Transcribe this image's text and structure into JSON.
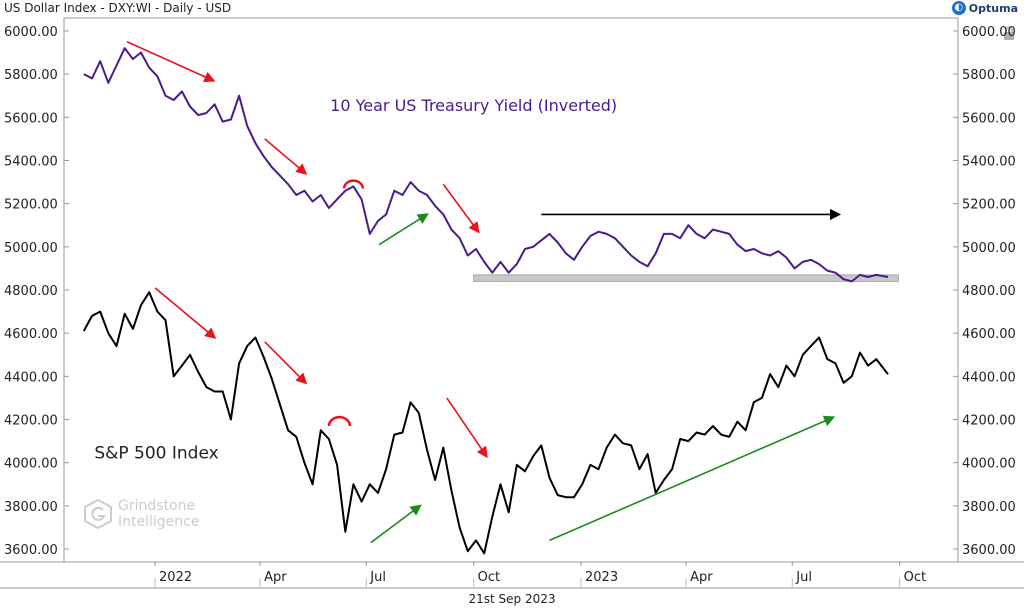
{
  "header": {
    "title": "US Dollar Index - DXY:WI - Daily - USD"
  },
  "brand": {
    "name": "Optuma",
    "logo_icon": "optuma-logo-icon"
  },
  "footer": {
    "date": "21st Sep 2023"
  },
  "watermark": {
    "line1": "Grindstone",
    "line2": "Intelligence"
  },
  "chart_data": {
    "type": "line",
    "ylim": [
      3540,
      6060
    ],
    "y_ticks": [
      "6000.00",
      "5800.00",
      "5600.00",
      "5400.00",
      "5200.00",
      "5000.00",
      "4800.00",
      "4600.00",
      "4400.00",
      "4200.00",
      "4000.00",
      "3800.00",
      "3600.00"
    ],
    "x_ticks": [
      "2022",
      "Apr",
      "Jul",
      "Oct",
      "2023",
      "Apr",
      "Jul",
      "Oct"
    ],
    "x_tick_dates": [
      "2022-01-01",
      "2022-04-01",
      "2022-07-01",
      "2022-10-01",
      "2023-01-01",
      "2023-04-01",
      "2023-07-01",
      "2023-10-01"
    ],
    "xlim": [
      "2021-10-15",
      "2023-11-20"
    ],
    "series": [
      {
        "name": "10 Year US Treasury Yield (Inverted)",
        "color": "#4b1a8c",
        "points": [
          [
            "2021-11-01",
            5800
          ],
          [
            "2021-11-08",
            5780
          ],
          [
            "2021-11-15",
            5860
          ],
          [
            "2021-11-22",
            5760
          ],
          [
            "2021-11-29",
            5840
          ],
          [
            "2021-12-06",
            5920
          ],
          [
            "2021-12-13",
            5870
          ],
          [
            "2021-12-20",
            5900
          ],
          [
            "2021-12-27",
            5830
          ],
          [
            "2022-01-03",
            5790
          ],
          [
            "2022-01-10",
            5700
          ],
          [
            "2022-01-17",
            5680
          ],
          [
            "2022-01-24",
            5720
          ],
          [
            "2022-01-31",
            5650
          ],
          [
            "2022-02-07",
            5610
          ],
          [
            "2022-02-14",
            5620
          ],
          [
            "2022-02-21",
            5660
          ],
          [
            "2022-02-28",
            5580
          ],
          [
            "2022-03-07",
            5590
          ],
          [
            "2022-03-14",
            5700
          ],
          [
            "2022-03-21",
            5560
          ],
          [
            "2022-03-28",
            5480
          ],
          [
            "2022-04-04",
            5420
          ],
          [
            "2022-04-11",
            5370
          ],
          [
            "2022-04-18",
            5330
          ],
          [
            "2022-04-25",
            5290
          ],
          [
            "2022-05-02",
            5240
          ],
          [
            "2022-05-09",
            5260
          ],
          [
            "2022-05-16",
            5210
          ],
          [
            "2022-05-23",
            5240
          ],
          [
            "2022-05-30",
            5180
          ],
          [
            "2022-06-06",
            5220
          ],
          [
            "2022-06-13",
            5260
          ],
          [
            "2022-06-20",
            5280
          ],
          [
            "2022-06-27",
            5220
          ],
          [
            "2022-07-04",
            5060
          ],
          [
            "2022-07-11",
            5120
          ],
          [
            "2022-07-18",
            5150
          ],
          [
            "2022-07-25",
            5260
          ],
          [
            "2022-08-01",
            5240
          ],
          [
            "2022-08-08",
            5300
          ],
          [
            "2022-08-15",
            5260
          ],
          [
            "2022-08-22",
            5240
          ],
          [
            "2022-08-29",
            5190
          ],
          [
            "2022-09-05",
            5150
          ],
          [
            "2022-09-12",
            5080
          ],
          [
            "2022-09-19",
            5040
          ],
          [
            "2022-09-26",
            4960
          ],
          [
            "2022-10-03",
            4990
          ],
          [
            "2022-10-10",
            4930
          ],
          [
            "2022-10-17",
            4880
          ],
          [
            "2022-10-24",
            4930
          ],
          [
            "2022-10-31",
            4880
          ],
          [
            "2022-11-07",
            4920
          ],
          [
            "2022-11-14",
            4990
          ],
          [
            "2022-11-21",
            5000
          ],
          [
            "2022-11-28",
            5030
          ],
          [
            "2022-12-05",
            5060
          ],
          [
            "2022-12-12",
            5020
          ],
          [
            "2022-12-19",
            4970
          ],
          [
            "2022-12-26",
            4940
          ],
          [
            "2023-01-02",
            5000
          ],
          [
            "2023-01-09",
            5050
          ],
          [
            "2023-01-16",
            5070
          ],
          [
            "2023-01-23",
            5060
          ],
          [
            "2023-01-30",
            5040
          ],
          [
            "2023-02-06",
            5000
          ],
          [
            "2023-02-13",
            4960
          ],
          [
            "2023-02-20",
            4930
          ],
          [
            "2023-02-27",
            4910
          ],
          [
            "2023-03-06",
            4970
          ],
          [
            "2023-03-13",
            5060
          ],
          [
            "2023-03-20",
            5060
          ],
          [
            "2023-03-27",
            5040
          ],
          [
            "2023-04-03",
            5100
          ],
          [
            "2023-04-10",
            5060
          ],
          [
            "2023-04-17",
            5040
          ],
          [
            "2023-04-24",
            5080
          ],
          [
            "2023-05-01",
            5070
          ],
          [
            "2023-05-08",
            5060
          ],
          [
            "2023-05-15",
            5010
          ],
          [
            "2023-05-22",
            4980
          ],
          [
            "2023-05-29",
            4990
          ],
          [
            "2023-06-05",
            4970
          ],
          [
            "2023-06-12",
            4960
          ],
          [
            "2023-06-19",
            4980
          ],
          [
            "2023-06-26",
            4950
          ],
          [
            "2023-07-03",
            4900
          ],
          [
            "2023-07-10",
            4930
          ],
          [
            "2023-07-17",
            4940
          ],
          [
            "2023-07-24",
            4920
          ],
          [
            "2023-07-31",
            4890
          ],
          [
            "2023-08-07",
            4880
          ],
          [
            "2023-08-14",
            4850
          ],
          [
            "2023-08-21",
            4840
          ],
          [
            "2023-08-28",
            4870
          ],
          [
            "2023-09-04",
            4860
          ],
          [
            "2023-09-11",
            4870
          ],
          [
            "2023-09-21",
            4860
          ]
        ]
      },
      {
        "name": "S&P 500 Index",
        "color": "#000000",
        "points": [
          [
            "2021-11-01",
            4610
          ],
          [
            "2021-11-08",
            4680
          ],
          [
            "2021-11-15",
            4700
          ],
          [
            "2021-11-22",
            4600
          ],
          [
            "2021-11-29",
            4540
          ],
          [
            "2021-12-06",
            4690
          ],
          [
            "2021-12-13",
            4620
          ],
          [
            "2021-12-20",
            4730
          ],
          [
            "2021-12-27",
            4790
          ],
          [
            "2022-01-03",
            4700
          ],
          [
            "2022-01-10",
            4660
          ],
          [
            "2022-01-17",
            4400
          ],
          [
            "2022-01-24",
            4450
          ],
          [
            "2022-01-31",
            4500
          ],
          [
            "2022-02-07",
            4420
          ],
          [
            "2022-02-14",
            4350
          ],
          [
            "2022-02-21",
            4330
          ],
          [
            "2022-02-28",
            4330
          ],
          [
            "2022-03-07",
            4200
          ],
          [
            "2022-03-14",
            4460
          ],
          [
            "2022-03-21",
            4540
          ],
          [
            "2022-03-28",
            4580
          ],
          [
            "2022-04-04",
            4490
          ],
          [
            "2022-04-11",
            4390
          ],
          [
            "2022-04-18",
            4270
          ],
          [
            "2022-04-25",
            4150
          ],
          [
            "2022-05-02",
            4120
          ],
          [
            "2022-05-09",
            4000
          ],
          [
            "2022-05-16",
            3900
          ],
          [
            "2022-05-23",
            4150
          ],
          [
            "2022-05-30",
            4110
          ],
          [
            "2022-06-06",
            3990
          ],
          [
            "2022-06-13",
            3680
          ],
          [
            "2022-06-20",
            3900
          ],
          [
            "2022-06-27",
            3820
          ],
          [
            "2022-07-04",
            3900
          ],
          [
            "2022-07-11",
            3860
          ],
          [
            "2022-07-18",
            3970
          ],
          [
            "2022-07-25",
            4130
          ],
          [
            "2022-08-01",
            4140
          ],
          [
            "2022-08-08",
            4280
          ],
          [
            "2022-08-15",
            4230
          ],
          [
            "2022-08-22",
            4060
          ],
          [
            "2022-08-29",
            3920
          ],
          [
            "2022-09-05",
            4070
          ],
          [
            "2022-09-12",
            3870
          ],
          [
            "2022-09-19",
            3700
          ],
          [
            "2022-09-26",
            3590
          ],
          [
            "2022-10-03",
            3640
          ],
          [
            "2022-10-10",
            3580
          ],
          [
            "2022-10-17",
            3750
          ],
          [
            "2022-10-24",
            3900
          ],
          [
            "2022-10-31",
            3770
          ],
          [
            "2022-11-07",
            3990
          ],
          [
            "2022-11-14",
            3960
          ],
          [
            "2022-11-21",
            4030
          ],
          [
            "2022-11-28",
            4080
          ],
          [
            "2022-12-05",
            3930
          ],
          [
            "2022-12-12",
            3850
          ],
          [
            "2022-12-19",
            3840
          ],
          [
            "2022-12-26",
            3840
          ],
          [
            "2023-01-02",
            3900
          ],
          [
            "2023-01-09",
            3990
          ],
          [
            "2023-01-16",
            3970
          ],
          [
            "2023-01-23",
            4070
          ],
          [
            "2023-01-30",
            4130
          ],
          [
            "2023-02-06",
            4090
          ],
          [
            "2023-02-13",
            4080
          ],
          [
            "2023-02-20",
            3970
          ],
          [
            "2023-02-27",
            4040
          ],
          [
            "2023-03-06",
            3860
          ],
          [
            "2023-03-13",
            3920
          ],
          [
            "2023-03-20",
            3970
          ],
          [
            "2023-03-27",
            4110
          ],
          [
            "2023-04-03",
            4100
          ],
          [
            "2023-04-10",
            4140
          ],
          [
            "2023-04-17",
            4130
          ],
          [
            "2023-04-24",
            4170
          ],
          [
            "2023-05-01",
            4130
          ],
          [
            "2023-05-08",
            4120
          ],
          [
            "2023-05-15",
            4190
          ],
          [
            "2023-05-22",
            4150
          ],
          [
            "2023-05-29",
            4280
          ],
          [
            "2023-06-05",
            4300
          ],
          [
            "2023-06-12",
            4410
          ],
          [
            "2023-06-19",
            4350
          ],
          [
            "2023-06-26",
            4450
          ],
          [
            "2023-07-03",
            4400
          ],
          [
            "2023-07-10",
            4500
          ],
          [
            "2023-07-17",
            4540
          ],
          [
            "2023-07-24",
            4580
          ],
          [
            "2023-07-31",
            4480
          ],
          [
            "2023-08-07",
            4460
          ],
          [
            "2023-08-14",
            4370
          ],
          [
            "2023-08-21",
            4400
          ],
          [
            "2023-08-28",
            4510
          ],
          [
            "2023-09-04",
            4450
          ],
          [
            "2023-09-11",
            4480
          ],
          [
            "2023-09-21",
            4410
          ]
        ]
      }
    ],
    "annotations": [
      {
        "type": "arrow",
        "color": "#e8141c",
        "from": [
          "2021-12-08",
          5950
        ],
        "to": [
          "2022-02-20",
          5770
        ]
      },
      {
        "type": "arrow",
        "color": "#e8141c",
        "from": [
          "2022-04-05",
          5500
        ],
        "to": [
          "2022-05-10",
          5340
        ]
      },
      {
        "type": "arrow",
        "color": "#1e8a1e",
        "from": [
          "2022-07-12",
          5010
        ],
        "to": [
          "2022-08-22",
          5150
        ]
      },
      {
        "type": "arrow",
        "color": "#e8141c",
        "from": [
          "2022-09-05",
          5290
        ],
        "to": [
          "2022-10-05",
          5070
        ]
      },
      {
        "type": "arrow",
        "color": "#000000",
        "from": [
          "2022-11-28",
          5150
        ],
        "to": [
          "2023-08-10",
          5150
        ]
      },
      {
        "type": "arrow",
        "color": "#e8141c",
        "from": [
          "2022-01-01",
          4810
        ],
        "to": [
          "2022-02-21",
          4580
        ]
      },
      {
        "type": "arrow",
        "color": "#e8141c",
        "from": [
          "2022-04-05",
          4560
        ],
        "to": [
          "2022-05-10",
          4370
        ]
      },
      {
        "type": "arrow",
        "color": "#1e8a1e",
        "from": [
          "2022-07-05",
          3630
        ],
        "to": [
          "2022-08-16",
          3800
        ]
      },
      {
        "type": "arrow",
        "color": "#e8141c",
        "from": [
          "2022-09-08",
          4300
        ],
        "to": [
          "2022-10-12",
          4030
        ]
      },
      {
        "type": "arrow",
        "color": "#1e8a1e",
        "from": [
          "2022-12-05",
          3640
        ],
        "to": [
          "2023-08-05",
          4210
        ]
      },
      {
        "type": "arc",
        "color": "#e8141c",
        "center": [
          "2022-06-20",
          5270
        ],
        "rx_days": 8
      },
      {
        "type": "arc",
        "color": "#e8141c",
        "center": [
          "2022-06-08",
          4170
        ],
        "rx_days": 9
      },
      {
        "type": "band",
        "color": "#c8c8c8",
        "from": [
          "2022-10-01",
          4840
        ],
        "to": [
          "2023-09-30",
          4870
        ]
      }
    ],
    "labels": [
      {
        "text": "10 Year US Treasury Yield (Inverted)",
        "color": "#4b1a8c",
        "at": [
          "2022-10-01",
          5630
        ]
      },
      {
        "text": "S&P 500 Index",
        "color": "#222222",
        "at": [
          "2021-11-10",
          4020
        ]
      }
    ]
  }
}
